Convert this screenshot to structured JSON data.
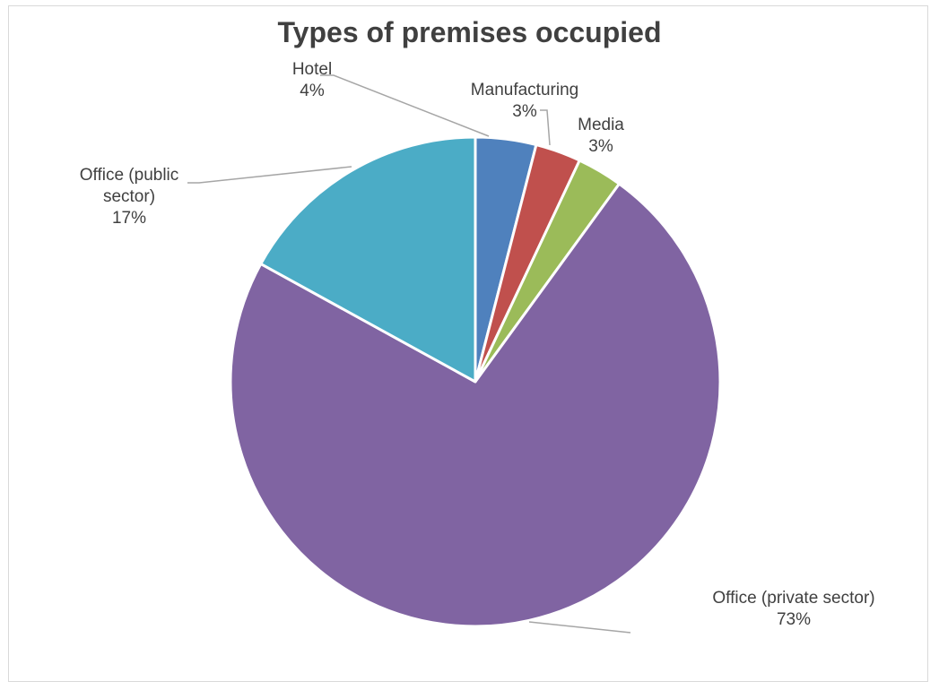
{
  "chart_data": {
    "type": "pie",
    "title": "Types of premises occupied",
    "slices": [
      {
        "name": "Hotel",
        "value": 4,
        "label": "4%",
        "color": "#4F81BD"
      },
      {
        "name": "Manufacturing",
        "value": 3,
        "label": "3%",
        "color": "#C0504D"
      },
      {
        "name": "Media",
        "value": 3,
        "label": "3%",
        "color": "#9BBB59"
      },
      {
        "name": "Office (private sector)",
        "value": 73,
        "label": "73%",
        "color": "#8064A2"
      },
      {
        "name": "Office (public sector)",
        "value": 17,
        "label": "17%",
        "color": "#4BACC6"
      }
    ],
    "grid": false,
    "legend": "none"
  }
}
